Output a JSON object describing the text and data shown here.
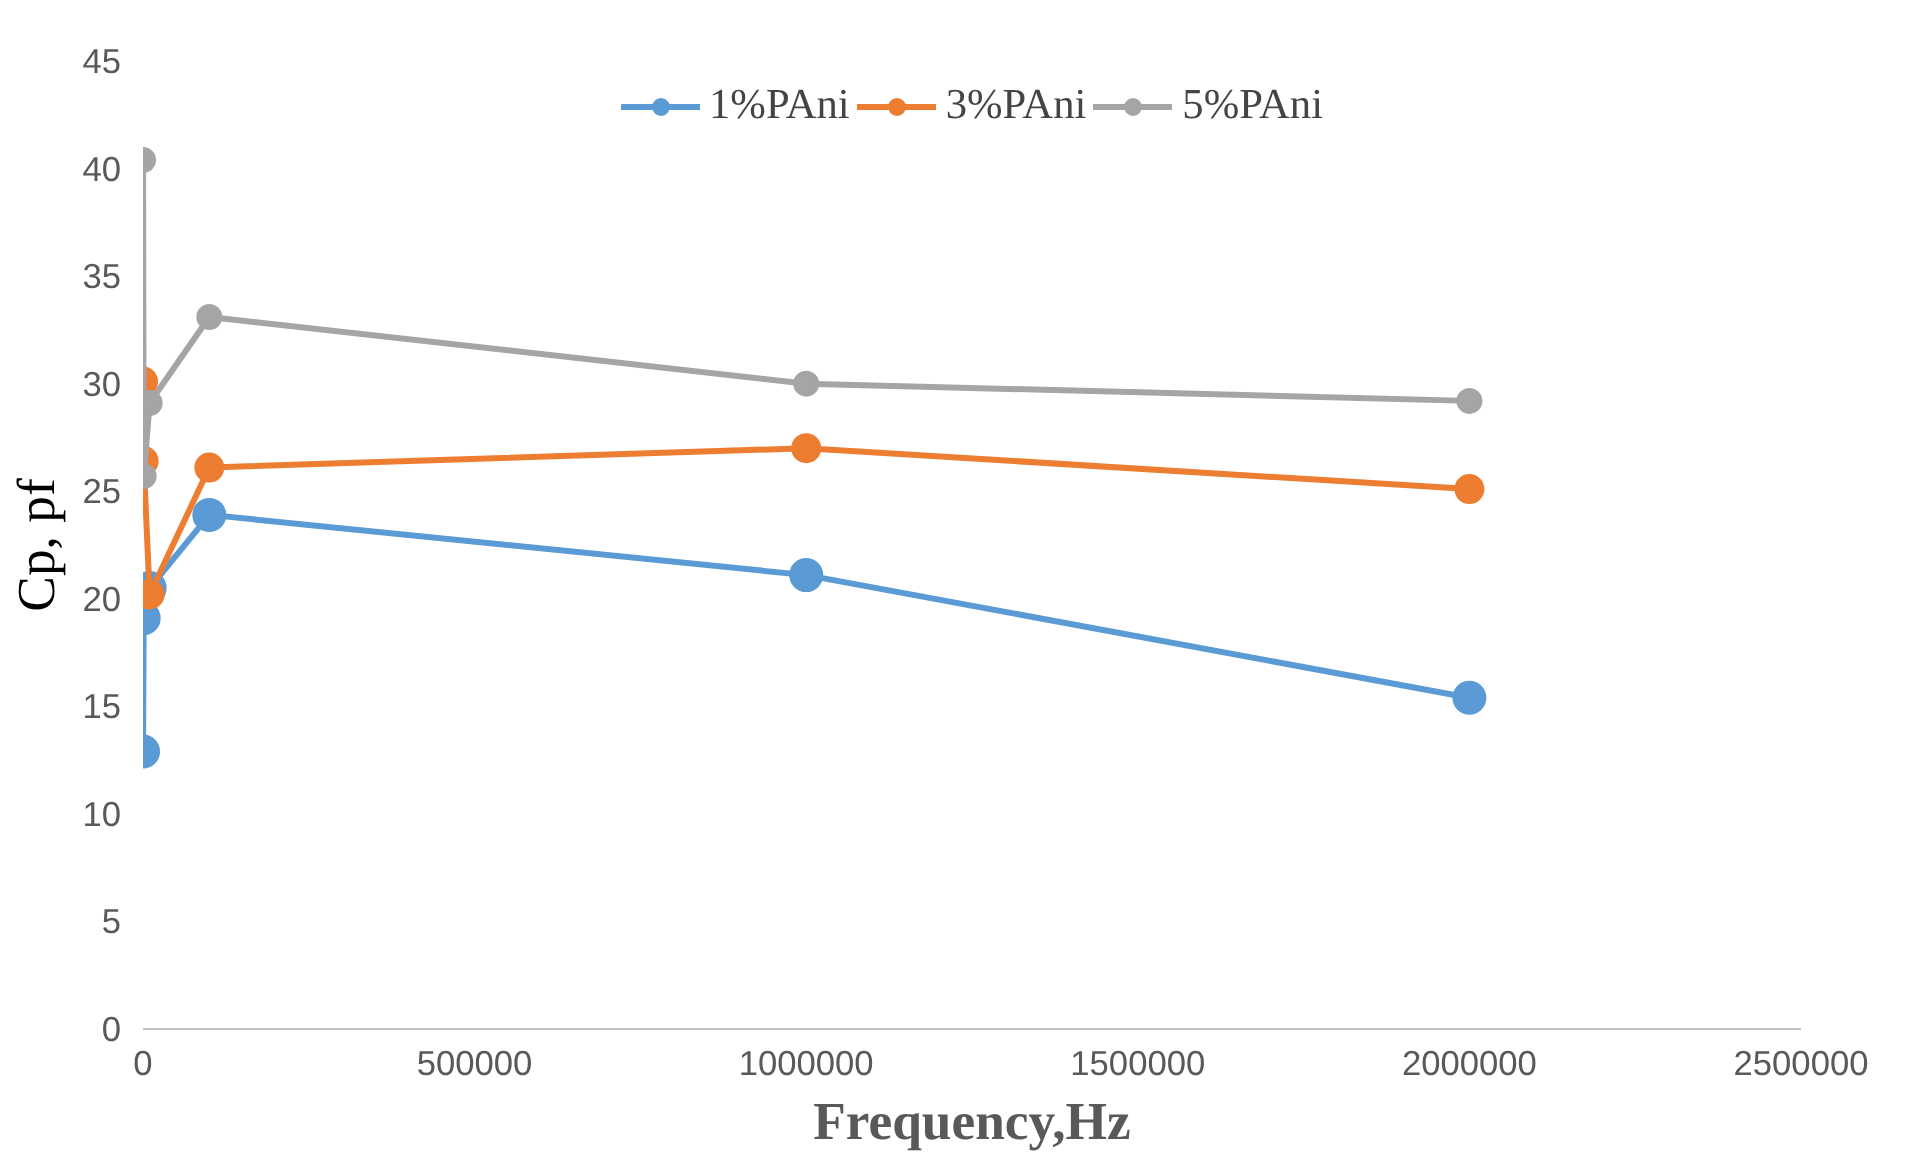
{
  "chart_data": {
    "type": "line",
    "xlabel": "Frequency,Hz",
    "ylabel": "Cp, pf",
    "x": [
      100,
      1000,
      10000,
      100000,
      1000000,
      2000000
    ],
    "series": [
      {
        "name": "1%PAni",
        "color": "#5b9bd5",
        "values": [
          12.9,
          19.1,
          20.5,
          23.9,
          21.1,
          15.4
        ]
      },
      {
        "name": "3%PAni",
        "color": "#ed7d31",
        "values": [
          30.1,
          26.4,
          20.2,
          26.1,
          27.0,
          25.1
        ]
      },
      {
        "name": "5%PAni",
        "color": "#a5a5a5",
        "values": [
          40.4,
          25.7,
          29.1,
          33.1,
          30.0,
          29.2
        ]
      }
    ],
    "xlim": [
      0,
      2500000
    ],
    "xticks": [
      0,
      500000,
      1000000,
      1500000,
      2000000,
      2500000
    ],
    "ylim": [
      0,
      45
    ],
    "yticks": [
      0,
      5,
      10,
      15,
      20,
      25,
      30,
      35,
      40,
      45
    ],
    "grid": false,
    "legend": "top",
    "marker": "circle",
    "line_style": "solid"
  }
}
